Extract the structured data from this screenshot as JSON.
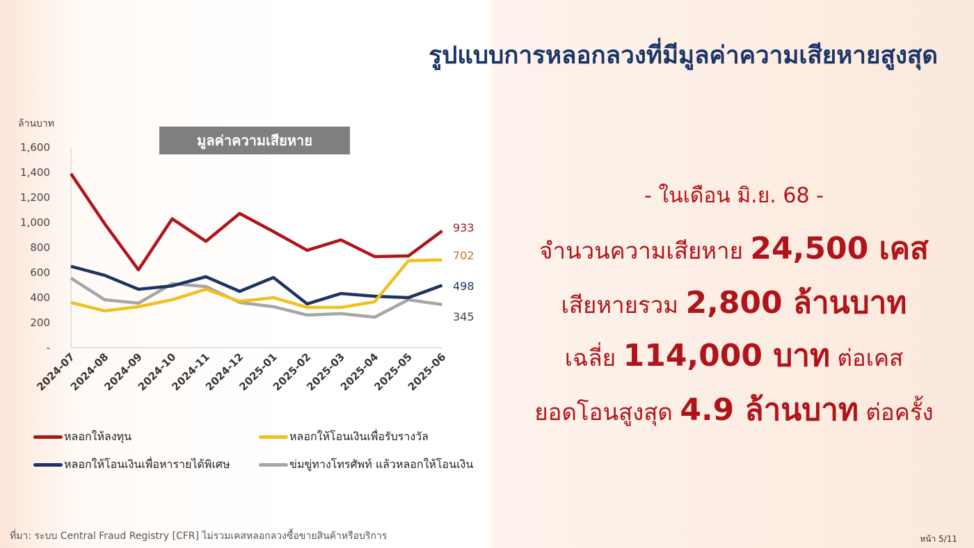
{
  "title": "รูปแบบการหลอกลวงที่มีมูลค่าความเสียหายสูงสุด",
  "chart_data": {
    "type": "line",
    "title": "มูลค่าความเสียหาย",
    "ylabel": "ล้านบาท",
    "ylim": [
      0,
      1600
    ],
    "yticks": [
      "-",
      "200",
      "400",
      "600",
      "800",
      "1,000",
      "1,200",
      "1,400",
      "1,600"
    ],
    "categories": [
      "2024-07",
      "2024-08",
      "2024-09",
      "2024-10",
      "2024-11",
      "2024-12",
      "2025-01",
      "2025-02",
      "2025-03",
      "2025-04",
      "2025-05",
      "2025-06"
    ],
    "grid": false,
    "legend_position": "bottom",
    "series": [
      {
        "name": "หลอกให้ลงทุน",
        "color": "#b0141b",
        "values": [
          1390,
          990,
          622,
          1030,
          850,
          1072,
          928,
          778,
          861,
          728,
          733,
          933
        ],
        "end_label": "933"
      },
      {
        "name": "หลอกให้โอนเงินเพื่อรับรางวัล",
        "color": "#f2c01e",
        "values": [
          361,
          294,
          328,
          383,
          467,
          370,
          400,
          322,
          322,
          367,
          695,
          702
        ],
        "end_label": "702"
      },
      {
        "name": "หลอกให้โอนเงินเพื่อหารายได้พิเศษ",
        "color": "#1d3461",
        "values": [
          650,
          578,
          467,
          494,
          567,
          450,
          561,
          350,
          433,
          411,
          400,
          498
        ],
        "end_label": "498"
      },
      {
        "name": "ข่มขู่ทางโทรศัพท์ แล้วหลอกให้โอนเงิน",
        "color": "#a6a6a6",
        "values": [
          556,
          383,
          356,
          511,
          489,
          361,
          328,
          261,
          272,
          244,
          383,
          345
        ],
        "end_label": "345"
      }
    ],
    "end_label_colors": [
      "#b0141b",
      "#c5762a",
      "#1d3461",
      "#444444"
    ]
  },
  "stats": {
    "month": "- ในเดือน มิ.ย. 68 -",
    "cases_pre": "จำนวนความเสียหาย ",
    "cases_val": "24,500 เคส",
    "total_pre": "เสียหายรวม ",
    "total_val": "2,800 ล้านบาท",
    "avg_pre": "เฉลี่ย ",
    "avg_val": "114,000 บาท",
    "avg_post": " ต่อเคส",
    "max_pre": "ยอดโอนสูงสุด ",
    "max_val": "4.9 ล้านบาท",
    "max_post": " ต่อครั้ง"
  },
  "source": "ที่มา: ระบบ Central Fraud Registry [CFR] ไม่รวมเคสหลอกลวงซื้อขายสินค้าหรือบริการ",
  "page": "หน้า 5/11"
}
